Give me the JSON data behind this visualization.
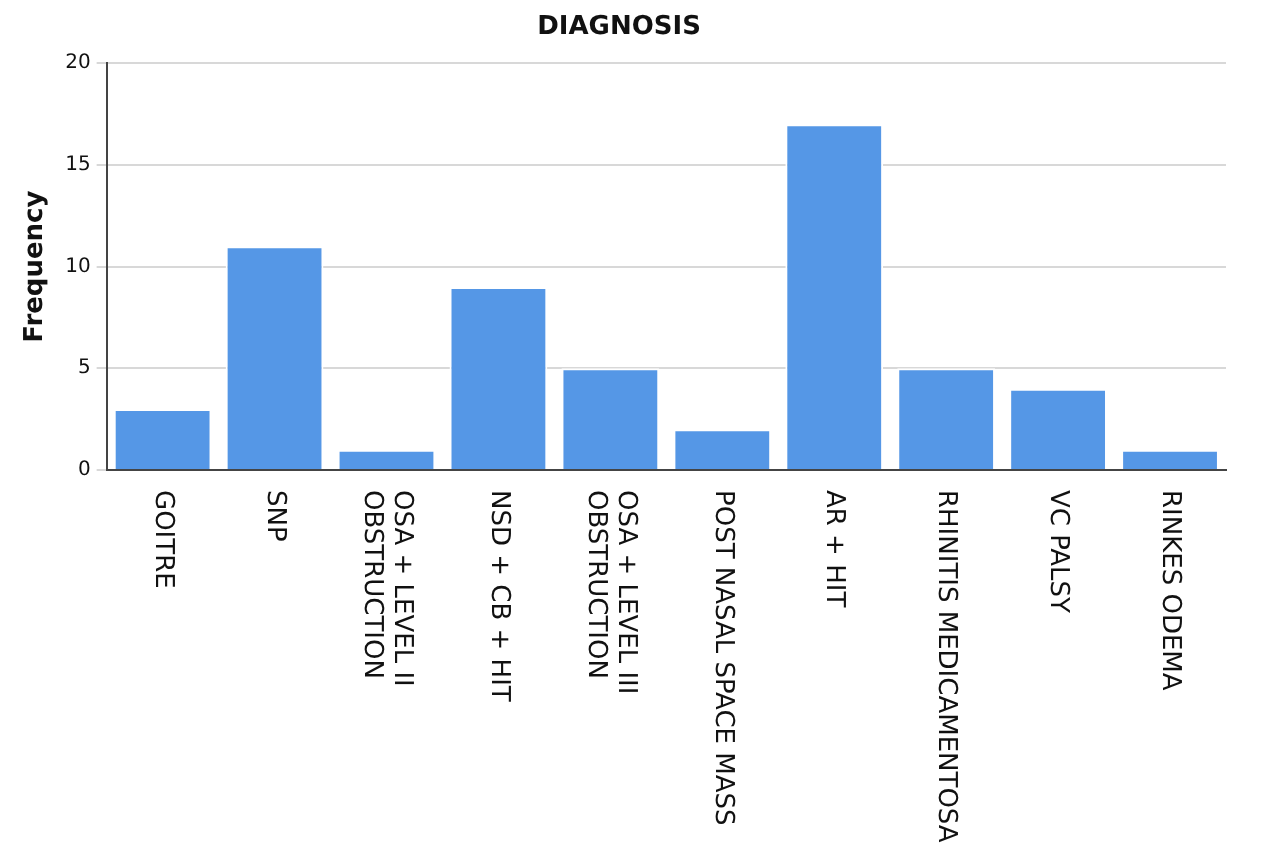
{
  "chart_data": {
    "type": "bar",
    "title": "DIAGNOSIS",
    "ylabel": "Frequency",
    "categories": [
      "GOITRE",
      "SNP",
      "OSA + LEVEL II OBSTRUCTION",
      "NSD + CB + HIT",
      "OSA + LEVEL III OBSTRUCTION",
      "POST NASAL SPACE MASS",
      "AR + HIT",
      "RHINITIS MEDICAMENTOSA",
      "VC PALSY",
      "RINKES ODEMA"
    ],
    "values": [
      3,
      11,
      1,
      9,
      5,
      2,
      17,
      5,
      4,
      1
    ],
    "color": "#5597e6",
    "ylim": [
      0,
      20
    ],
    "yticks": [
      0,
      5,
      10,
      15,
      20
    ],
    "grid": "y",
    "legend": false
  }
}
